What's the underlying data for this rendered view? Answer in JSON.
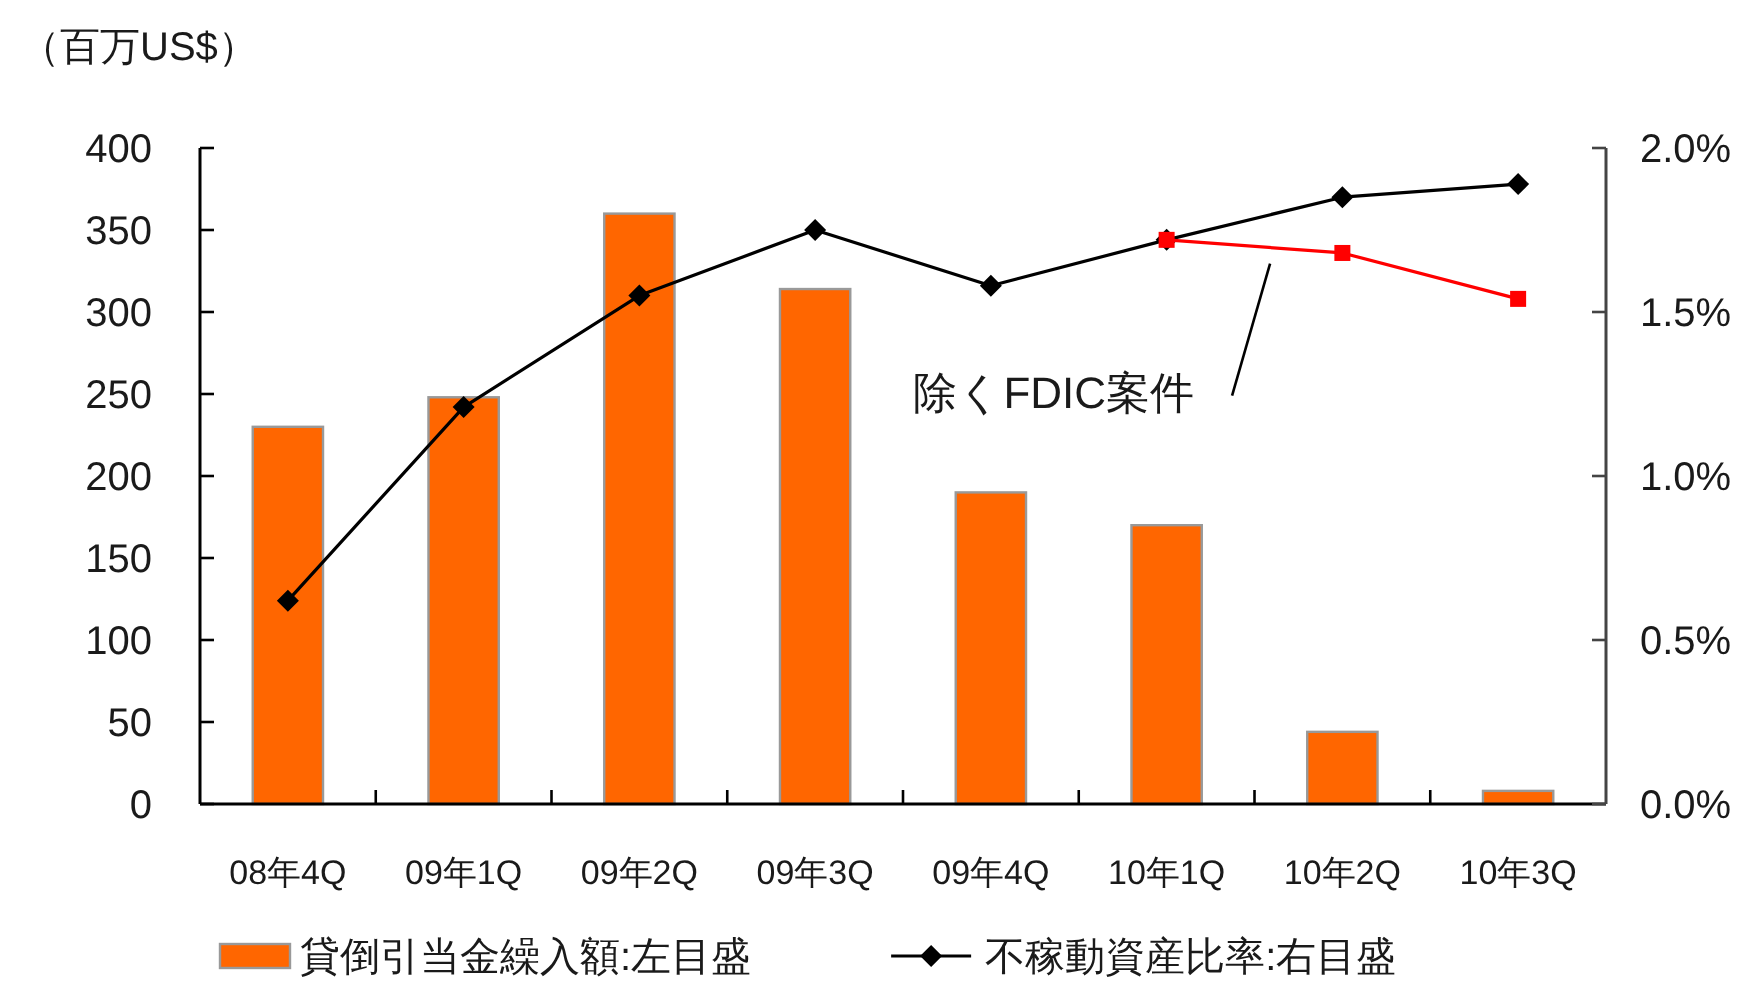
{
  "chart_data": {
    "type": "bar",
    "ylabel": "（百万US$）",
    "categories": [
      "08年4Q",
      "09年1Q",
      "09年2Q",
      "09年3Q",
      "09年4Q",
      "10年1Q",
      "10年2Q",
      "10年3Q"
    ],
    "series": [
      {
        "name": "貸倒引当金繰入額:左目盛",
        "color": "#ff6600",
        "values": [
          230,
          248,
          360,
          314,
          190,
          170,
          44,
          8
        ]
      },
      {
        "name": "不稼動資産比率:右目盛",
        "type": "line",
        "axis": "y2",
        "color": "#000000",
        "marker": "diamond",
        "values": [
          0.62,
          1.21,
          1.55,
          1.75,
          1.58,
          1.72,
          1.85,
          1.89
        ]
      },
      {
        "name": "除くFDIC案件",
        "type": "line",
        "axis": "y2",
        "color": "#ff0000",
        "marker": "square",
        "values": [
          null,
          null,
          null,
          null,
          null,
          1.72,
          1.68,
          1.54
        ]
      }
    ],
    "ylim": [
      0,
      400
    ],
    "yticks": [
      0,
      50,
      100,
      150,
      200,
      250,
      300,
      350,
      400
    ],
    "y2lim": [
      0,
      2
    ],
    "y2ticks": [
      {
        "value": 0,
        "label": "0.0%"
      },
      {
        "value": 0.5,
        "label": "0.5%"
      },
      {
        "value": 1,
        "label": "1.0%"
      },
      {
        "value": 1.5,
        "label": "1.5%"
      },
      {
        "value": 2,
        "label": "2.0%"
      }
    ],
    "legend": "bottom",
    "grid": false
  }
}
